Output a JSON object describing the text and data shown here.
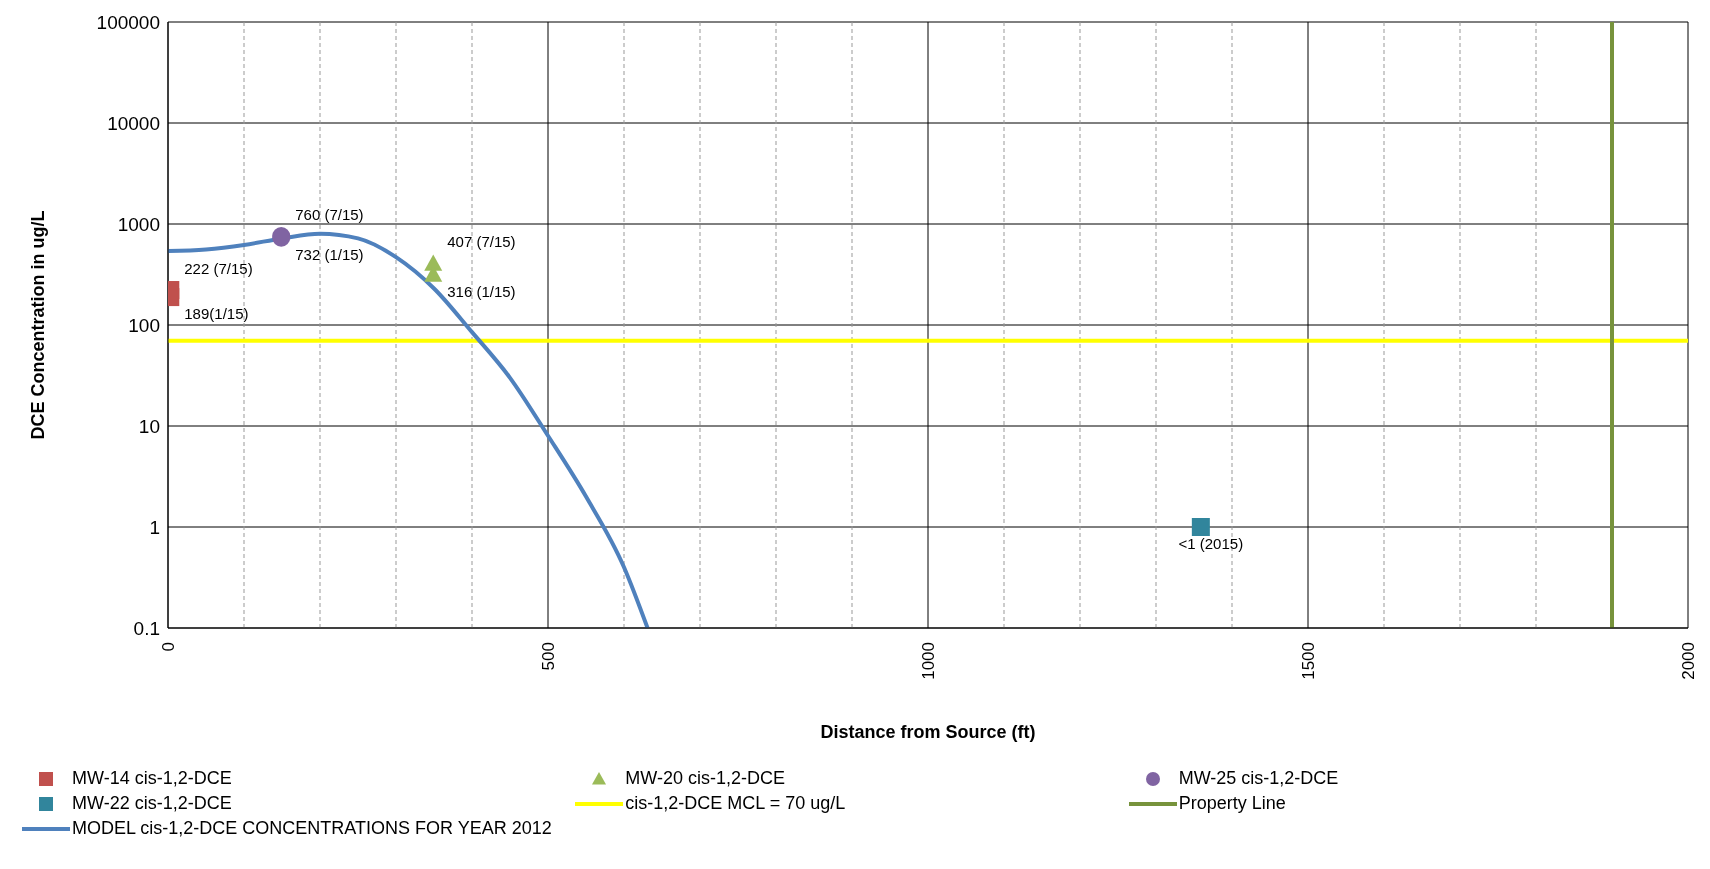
{
  "chart_data": {
    "type": "scatter",
    "xlabel": "Distance from Source (ft)",
    "ylabel": "DCE Concentration in ug/L",
    "log": "y",
    "grid": true,
    "legend": "bottom",
    "xlim": [
      0,
      2000
    ],
    "xticks": [
      0,
      {
        "value": 100,
        "label": null
      },
      {
        "value": 200,
        "label": null
      },
      {
        "value": 300,
        "label": null
      },
      {
        "value": 400,
        "label": null
      },
      500,
      {
        "value": 600,
        "label": null
      },
      {
        "value": 700,
        "label": null
      },
      {
        "value": 800,
        "label": null
      },
      {
        "value": 900,
        "label": null
      },
      1000,
      {
        "value": 1100,
        "label": null
      },
      {
        "value": 1200,
        "label": null
      },
      {
        "value": 1300,
        "label": null
      },
      {
        "value": 1400,
        "label": null
      },
      1500,
      {
        "value": 1600,
        "label": null
      },
      {
        "value": 1700,
        "label": null
      },
      {
        "value": 1800,
        "label": null
      },
      {
        "value": 1900,
        "label": null
      },
      2000
    ],
    "ylim": [
      0.1,
      100000
    ],
    "yticks": [
      0.1,
      1,
      10,
      100,
      1000,
      10000,
      100000
    ],
    "series": [
      {
        "name": "MW-14 cis-1,2-DCE",
        "type": "scatter",
        "marker": "square",
        "color": "#c0504d",
        "x": [
          3,
          3
        ],
        "values": [
          222,
          189
        ],
        "value_labels": [
          "222 (7/15)",
          "189(1/15)"
        ]
      },
      {
        "name": "MW-20 cis-1,2-DCE",
        "type": "scatter",
        "marker": "triangle",
        "color": "#9bbb59",
        "x": [
          349,
          349
        ],
        "values": [
          407,
          316
        ],
        "value_labels": [
          "407 (7/15)",
          "316 (1/15)"
        ]
      },
      {
        "name": "MW-25 cis-1,2-DCE",
        "type": "scatter",
        "marker": "circle",
        "color": "#8064a2",
        "x": [
          149,
          149
        ],
        "values": [
          760,
          732
        ],
        "value_labels": [
          "760 (7/15)",
          "732 (1/15)"
        ]
      },
      {
        "name": "MW-22 cis-1,2-DCE",
        "type": "scatter",
        "marker": "square",
        "color": "#31859c",
        "x": [
          1359
        ],
        "values": [
          1
        ],
        "value_labels": [
          "<1 (2015)"
        ]
      },
      {
        "name": "cis-1,2-DCE MCL = 70 ug/L",
        "type": "line",
        "marker": "none",
        "color": "#ffff00",
        "x": [
          0,
          2000
        ],
        "values": [
          70,
          70
        ]
      },
      {
        "name": "Property Line",
        "type": "line",
        "marker": "none",
        "color": "#77933c",
        "x": [
          1900,
          1900
        ],
        "values": [
          0.1,
          100000
        ]
      },
      {
        "name": "MODEL cis-1,2-DCE CONCENTRATIONS  FOR YEAR 2012",
        "type": "line",
        "marker": "none",
        "color": "#4f81bd",
        "x": [
          0,
          50,
          100,
          150,
          200,
          250,
          300,
          350,
          400,
          450,
          500,
          550,
          600,
          631
        ],
        "values": [
          540,
          560,
          620,
          720,
          800,
          720,
          470,
          230,
          85,
          30,
          8,
          2,
          0.4,
          0.1
        ]
      }
    ]
  }
}
